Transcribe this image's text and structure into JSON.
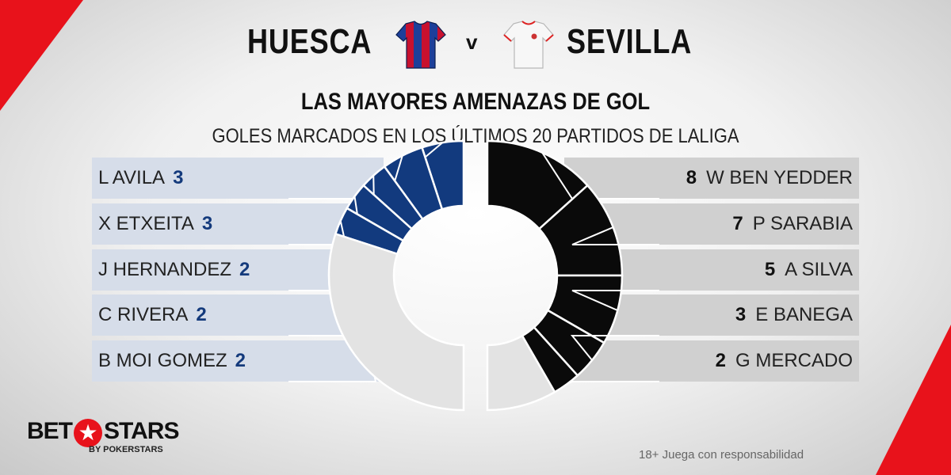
{
  "header": {
    "home_team": "HUESCA",
    "away_team": "SEVILLA",
    "versus": "v",
    "home_shirt_icon": "huesca-shirt-icon",
    "away_shirt_icon": "sevilla-shirt-icon",
    "headline": "LAS MAYORES AMENAZAS DE GOL",
    "subheadline": "GOLES MARCADOS EN LOS ÚLTIMOS 20 PARTIDOS DE LALIGA"
  },
  "chart_data": {
    "type": "pie",
    "title": "LAS MAYORES AMENAZAS DE GOL",
    "subtitle": "GOLES MARCADOS EN LOS ÚLTIMOS 20 PARTIDOS DE LALIGA",
    "home": {
      "team": "HUESCA",
      "color": "#123a7e",
      "players": [
        {
          "name": "L AVILA",
          "goals": 3
        },
        {
          "name": "X ETXEITA",
          "goals": 3
        },
        {
          "name": "J HERNANDEZ",
          "goals": 2
        },
        {
          "name": "C RIVERA",
          "goals": 2
        },
        {
          "name": "B MOI GOMEZ",
          "goals": 2
        }
      ]
    },
    "away": {
      "team": "SEVILLA",
      "color": "#0a0a0a",
      "players": [
        {
          "name": "W BEN YEDDER",
          "goals": 8
        },
        {
          "name": "P SARABIA",
          "goals": 7
        },
        {
          "name": "A SILVA",
          "goals": 5
        },
        {
          "name": "E BANEGA",
          "goals": 3
        },
        {
          "name": "G MERCADO",
          "goals": 2
        }
      ]
    }
  },
  "footer": {
    "brand_left": "BET",
    "brand_right": "STARS",
    "brand_sub": "BY POKERSTARS",
    "disclaimer": "18+ Juega con responsabilidad"
  },
  "colors": {
    "accent_red": "#e8121b",
    "home_blue": "#123a7e",
    "remainder_grey": "#e3e3e3"
  }
}
